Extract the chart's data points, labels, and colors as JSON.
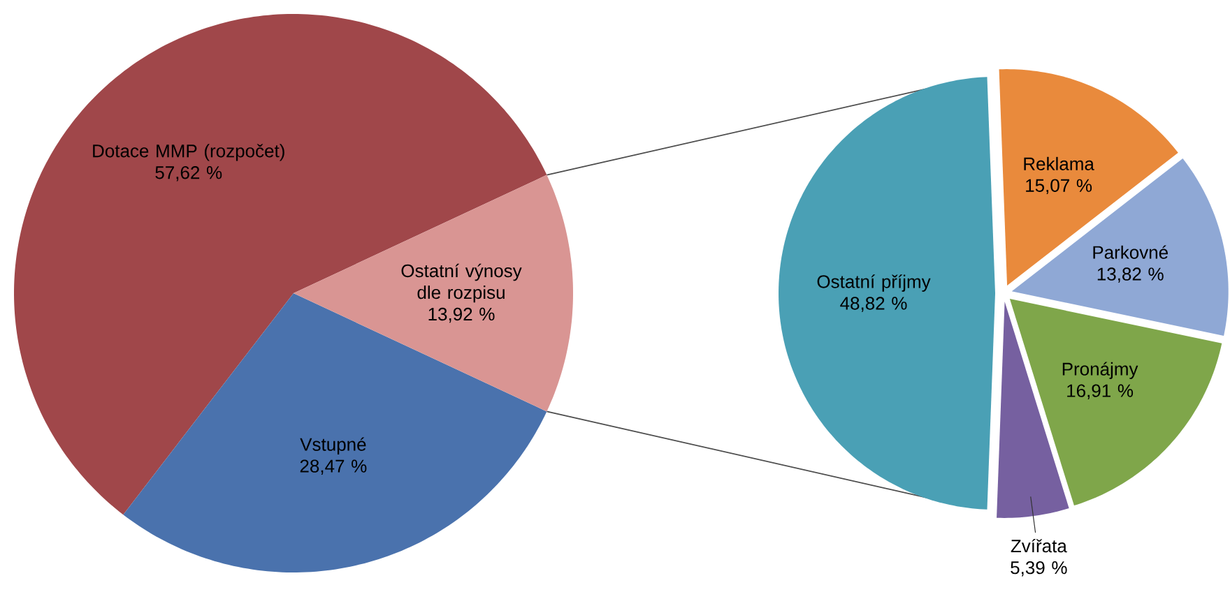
{
  "chart_data": [
    {
      "type": "pie",
      "categories": [
        "Dotace MMP (rozpočet)",
        "Vstupné",
        "Ostatní výnosy dle rozpisu"
      ],
      "values": [
        57.62,
        28.47,
        13.92
      ],
      "value_labels": [
        "57,62 %",
        "28,47 %",
        "13,92 %"
      ],
      "colors": [
        "#a0474a",
        "#4a72ad",
        "#d99593"
      ]
    },
    {
      "type": "pie",
      "categories": [
        "Ostatní příjmy",
        "Zvířata",
        "Pronájmy",
        "Parkovné",
        "Reklama"
      ],
      "values": [
        48.82,
        5.39,
        16.91,
        13.82,
        15.07
      ],
      "value_labels": [
        "48,82 %",
        "5,39 %",
        "16,91 %",
        "13,82 %",
        "15,07 %"
      ],
      "colors": [
        "#4aa0b5",
        "#7660a0",
        "#7fa64a",
        "#8fa8d5",
        "#e98a3c"
      ]
    }
  ]
}
